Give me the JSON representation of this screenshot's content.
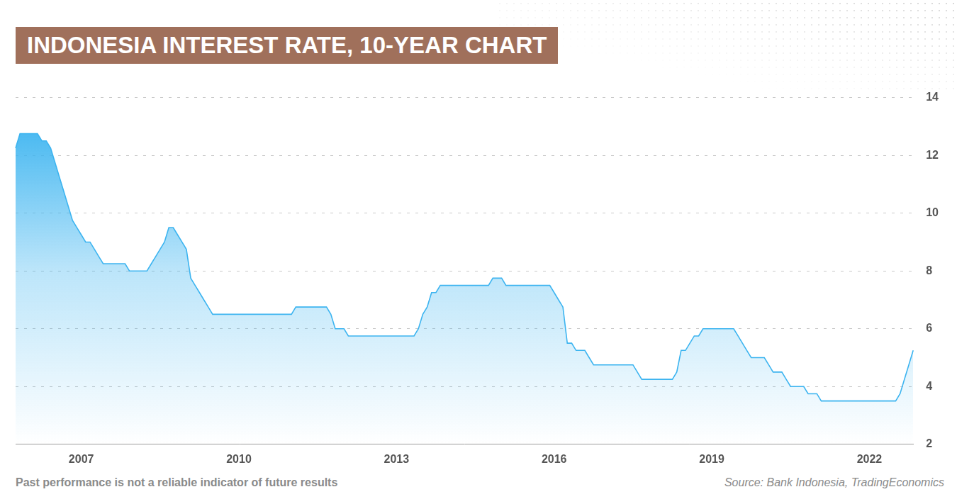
{
  "chart_data": {
    "type": "area",
    "title": "INDONESIA INTEREST RATE, 10-YEAR CHART",
    "note": "Past performance is not a reliable indicator of future results",
    "source": "Source: Bank Indonesia, TradingEconomics",
    "color": "#3cb4f0",
    "grid": true,
    "ylim": [
      2,
      14
    ],
    "yticks": [
      2,
      4,
      6,
      8,
      10,
      12,
      14
    ],
    "categories": [
      null,
      null,
      null,
      null,
      null,
      null,
      null,
      null,
      null,
      null,
      null,
      null,
      null,
      null,
      null,
      "2007",
      null,
      null,
      null,
      null,
      null,
      null,
      null,
      null,
      null,
      null,
      null,
      null,
      null,
      null,
      null,
      null,
      null,
      null,
      null,
      null,
      null,
      null,
      null,
      null,
      null,
      null,
      null,
      null,
      null,
      null,
      null,
      null,
      null,
      null,
      null,
      "2010",
      null,
      null,
      null,
      null,
      null,
      null,
      null,
      null,
      null,
      null,
      null,
      null,
      null,
      null,
      null,
      null,
      null,
      null,
      null,
      null,
      null,
      null,
      null,
      null,
      null,
      null,
      null,
      null,
      null,
      null,
      null,
      null,
      null,
      null,
      null,
      "2013",
      null,
      null,
      null,
      null,
      null,
      null,
      null,
      null,
      null,
      null,
      null,
      null,
      null,
      null,
      null,
      null,
      null,
      null,
      null,
      null,
      null,
      null,
      null,
      null,
      null,
      null,
      null,
      null,
      null,
      null,
      null,
      null,
      null,
      null,
      null,
      "2016",
      null,
      null,
      null,
      null,
      null,
      null,
      null,
      null,
      null,
      null,
      null,
      null,
      null,
      null,
      null,
      null,
      null,
      null,
      null,
      null,
      null,
      null,
      null,
      null,
      null,
      null,
      null,
      null,
      null,
      null,
      null,
      null,
      null,
      null,
      null,
      "2019",
      null,
      null,
      null,
      null,
      null,
      null,
      null,
      null,
      null,
      null,
      null,
      null,
      null,
      null,
      null,
      null,
      null,
      null,
      null,
      null,
      null,
      null,
      null,
      null,
      null,
      null,
      null,
      null,
      null,
      null,
      null,
      null,
      null,
      null,
      null,
      "2022",
      null,
      null,
      null,
      null,
      null,
      null,
      null,
      null,
      null,
      null
    ],
    "values": [
      12.25,
      12.75,
      12.75,
      12.75,
      12.75,
      12.75,
      12.5,
      12.5,
      12.25,
      11.75,
      11.25,
      10.75,
      10.25,
      9.75,
      9.5,
      9.25,
      9,
      9,
      8.75,
      8.5,
      8.25,
      8.25,
      8.25,
      8.25,
      8.25,
      8.25,
      8,
      8,
      8,
      8,
      8,
      8.25,
      8.5,
      8.75,
      9,
      9.5,
      9.5,
      9.25,
      9,
      8.75,
      7.75,
      7.5,
      7.25,
      7,
      6.75,
      6.5,
      6.5,
      6.5,
      6.5,
      6.5,
      6.5,
      6.5,
      6.5,
      6.5,
      6.5,
      6.5,
      6.5,
      6.5,
      6.5,
      6.5,
      6.5,
      6.5,
      6.5,
      6.5,
      6.75,
      6.75,
      6.75,
      6.75,
      6.75,
      6.75,
      6.75,
      6.75,
      6.5,
      6,
      6,
      6,
      5.75,
      5.75,
      5.75,
      5.75,
      5.75,
      5.75,
      5.75,
      5.75,
      5.75,
      5.75,
      5.75,
      5.75,
      5.75,
      5.75,
      5.75,
      5.75,
      6,
      6.5,
      6.75,
      7.25,
      7.25,
      7.5,
      7.5,
      7.5,
      7.5,
      7.5,
      7.5,
      7.5,
      7.5,
      7.5,
      7.5,
      7.5,
      7.5,
      7.75,
      7.75,
      7.75,
      7.5,
      7.5,
      7.5,
      7.5,
      7.5,
      7.5,
      7.5,
      7.5,
      7.5,
      7.5,
      7.5,
      7.25,
      7,
      6.75,
      5.5,
      5.5,
      5.25,
      5.25,
      5.25,
      5,
      4.75,
      4.75,
      4.75,
      4.75,
      4.75,
      4.75,
      4.75,
      4.75,
      4.75,
      4.75,
      4.5,
      4.25,
      4.25,
      4.25,
      4.25,
      4.25,
      4.25,
      4.25,
      4.25,
      4.5,
      5.25,
      5.25,
      5.5,
      5.75,
      5.75,
      6,
      6,
      6,
      6,
      6,
      6,
      6,
      6,
      5.75,
      5.5,
      5.25,
      5,
      5,
      5,
      5,
      4.75,
      4.5,
      4.5,
      4.5,
      4.25,
      4,
      4,
      4,
      4,
      3.75,
      3.75,
      3.75,
      3.5,
      3.5,
      3.5,
      3.5,
      3.5,
      3.5,
      3.5,
      3.5,
      3.5,
      3.5,
      3.5,
      3.5,
      3.5,
      3.5,
      3.5,
      3.5,
      3.5,
      3.5,
      3.75,
      4.25,
      4.75,
      5.25
    ]
  }
}
